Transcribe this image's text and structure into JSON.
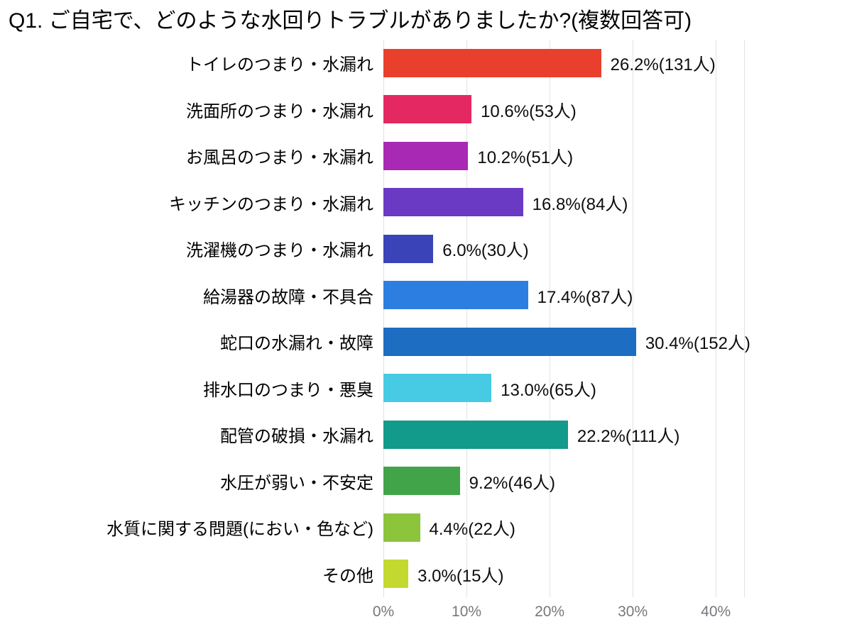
{
  "chart_data": {
    "type": "bar",
    "orientation": "horizontal",
    "title": "Q1. ご自宅で、どのような水回りトラブルがありましたか?(複数回答可)",
    "categories": [
      "トイレのつまり・水漏れ",
      "洗面所のつまり・水漏れ",
      "お風呂のつまり・水漏れ",
      "キッチンのつまり・水漏れ",
      "洗濯機のつまり・水漏れ",
      "給湯器の故障・不具合",
      "蛇口の水漏れ・故障",
      "排水口のつまり・悪臭",
      "配管の破損・水漏れ",
      "水圧が弱い・不安定",
      "水質に関する問題(におい・色など)",
      "その他"
    ],
    "values": [
      26.2,
      10.6,
      10.2,
      16.8,
      6.0,
      17.4,
      30.4,
      13.0,
      22.2,
      9.2,
      4.4,
      3.0
    ],
    "counts": [
      131,
      53,
      51,
      84,
      30,
      87,
      152,
      65,
      111,
      46,
      22,
      15
    ],
    "value_labels": [
      "26.2%(131人)",
      "10.6%(53人)",
      "10.2%(51人)",
      "16.8%(84人)",
      "6.0%(30人)",
      "17.4%(87人)",
      "30.4%(152人)",
      "13.0%(65人)",
      "22.2%(111人)",
      "9.2%(46人)",
      "4.4%(22人)",
      "3.0%(15人)"
    ],
    "bar_colors": [
      "#e8402c",
      "#e42862",
      "#a829b4",
      "#6a3ac4",
      "#3a43b8",
      "#2c7fe0",
      "#1d6dc2",
      "#47cbe4",
      "#129a8a",
      "#42a449",
      "#8cc43c",
      "#c4d930"
    ],
    "x_ticks": [
      {
        "value": 0,
        "label": "0%"
      },
      {
        "value": 10,
        "label": "10%"
      },
      {
        "value": 20,
        "label": "20%"
      },
      {
        "value": 30,
        "label": "30%"
      },
      {
        "value": 40,
        "label": "40%"
      },
      {
        "value": 43.4,
        "label": ""
      }
    ],
    "xlim": [
      0,
      43.4
    ],
    "grid": true,
    "legend": "none",
    "gridline_color": "#e2e2e7",
    "tick_label_color": "#77777d",
    "background_color": "#ffffff"
  }
}
